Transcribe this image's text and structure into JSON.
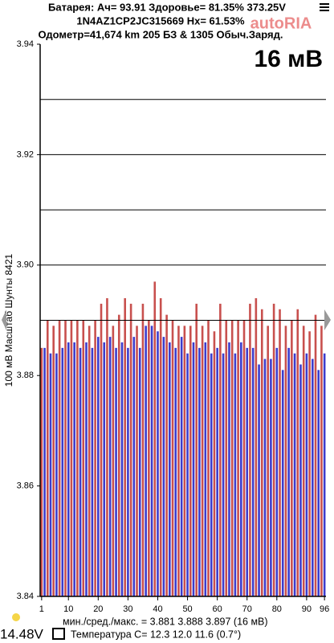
{
  "header": {
    "line1": "Батарея:  Ач= 93.91  Здоровье= 81.35%  373.25V",
    "line2": "1N4AZ1CP2JC315669   Hx= 61.53%",
    "line3": "Одометр=41,674 km 205 БЗ & 1305 Обыч.Заряд.",
    "watermark": "autoRIA"
  },
  "chart_data": {
    "type": "bar",
    "big_label": "16 мВ",
    "y_label": "100 мВ Масштаб   Шунты 8421",
    "categories": [
      "1",
      null,
      null,
      null,
      null,
      null,
      null,
      null,
      null,
      "10",
      null,
      null,
      null,
      null,
      null,
      null,
      null,
      null,
      null,
      "20",
      null,
      null,
      null,
      null,
      null,
      null,
      null,
      null,
      null,
      "30",
      null,
      null,
      null,
      null,
      null,
      null,
      null,
      null,
      null,
      "40",
      null,
      null,
      null,
      null,
      null,
      null,
      null,
      null,
      null,
      "50",
      null,
      null,
      null,
      null,
      null,
      null,
      null,
      null,
      null,
      "60",
      null,
      null,
      null,
      null,
      null,
      null,
      null,
      null,
      null,
      "70",
      null,
      null,
      null,
      null,
      null,
      null,
      null,
      null,
      null,
      "80",
      null,
      null,
      null,
      null,
      null,
      null,
      null,
      null,
      null,
      "90",
      null,
      null,
      null,
      null,
      null,
      "96"
    ],
    "values": [
      3.885,
      3.885,
      3.89,
      3.884,
      3.889,
      3.884,
      3.89,
      3.885,
      3.89,
      3.886,
      3.89,
      3.886,
      3.89,
      3.885,
      3.89,
      3.886,
      3.889,
      3.885,
      3.89,
      3.887,
      3.893,
      3.886,
      3.894,
      3.887,
      3.889,
      3.885,
      3.891,
      3.886,
      3.894,
      3.885,
      3.893,
      3.887,
      3.889,
      3.885,
      3.893,
      3.889,
      3.89,
      3.889,
      3.897,
      3.888,
      3.894,
      3.887,
      3.891,
      3.886,
      3.89,
      3.885,
      3.889,
      3.887,
      3.889,
      3.884,
      3.889,
      3.886,
      3.893,
      3.885,
      3.889,
      3.886,
      3.89,
      3.884,
      3.888,
      3.885,
      3.893,
      3.884,
      3.89,
      3.886,
      3.89,
      3.884,
      3.89,
      3.886,
      3.89,
      3.885,
      3.893,
      3.885,
      3.894,
      3.882,
      3.892,
      3.883,
      3.889,
      3.883,
      3.893,
      3.885,
      3.892,
      3.881,
      3.889,
      3.885,
      3.89,
      3.884,
      3.892,
      3.882,
      3.889,
      3.884,
      3.888,
      3.883,
      3.891,
      3.881,
      3.889,
      3.884
    ],
    "bar_colors": [
      "#c8504e",
      "#3c3ccc"
    ],
    "ylim": [
      3.84,
      3.94
    ],
    "yticks": [
      3.84,
      3.86,
      3.88,
      {
        "value": 3.9,
        "label": "3.90"
      },
      3.92,
      3.94
    ],
    "grid_lines": [
      3.89,
      3.9,
      3.91,
      3.92,
      3.93
    ],
    "summary": "мин./сред./макс. = 3.881 3.888 3.897 (16 мВ)",
    "pack_voltage": "14.48V",
    "temperature": "Температура С= 12.3  12.0  11.6  (0.7°)"
  }
}
